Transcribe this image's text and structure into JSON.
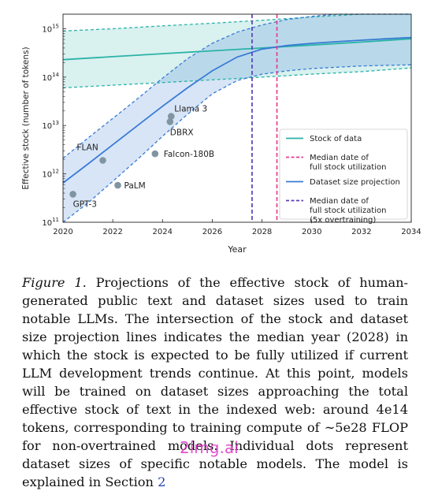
{
  "chart_data": {
    "type": "line",
    "xlabel": "Year",
    "ylabel": "Effective stock (number of tokens)",
    "xlim": [
      2020,
      2034
    ],
    "ylim": [
      100000000000.0,
      2000000000000000.0
    ],
    "yscale": "log",
    "grid": false,
    "legend_placement": "lower-right",
    "x_ticks": [
      "2020",
      "2022",
      "2024",
      "2026",
      "2028",
      "2030",
      "2032",
      "2034"
    ],
    "y_ticks": [
      {
        "value": 100000000000.0,
        "mantissa": "10",
        "exp": "11"
      },
      {
        "value": 1000000000000.0,
        "mantissa": "10",
        "exp": "12"
      },
      {
        "value": 10000000000000.0,
        "mantissa": "10",
        "exp": "13"
      },
      {
        "value": 100000000000000.0,
        "mantissa": "10",
        "exp": "14"
      },
      {
        "value": 1000000000000000.0,
        "mantissa": "10",
        "exp": "15"
      }
    ],
    "stock": {
      "color": "#2bb3a8",
      "x": [
        2020,
        2022,
        2024,
        2026,
        2028,
        2030,
        2032,
        2034
      ],
      "y": [
        230000000000000.0,
        265000000000000.0,
        305000000000000.0,
        350000000000000.0,
        400000000000000.0,
        460000000000000.0,
        530000000000000.0,
        620000000000000.0
      ],
      "lower": [
        60000000000000.0,
        68000000000000.0,
        77000000000000.0,
        88000000000000.0,
        100000000000000.0,
        115000000000000.0,
        130000000000000.0,
        155000000000000.0
      ],
      "upper": [
        900000000000000.0,
        1000000000000000.0,
        1150000000000000.0,
        1300000000000000.0,
        1500000000000000.0,
        1750000000000000.0,
        2000000000000000.0,
        2300000000000000.0
      ]
    },
    "projection": {
      "color": "#3a7bd5",
      "x": [
        2020,
        2021,
        2022,
        2023,
        2024,
        2025,
        2026,
        2027,
        2028,
        2029,
        2030,
        2031,
        2032,
        2033,
        2034
      ],
      "y": [
        650000000000.0,
        1600000000000.0,
        4000000000000.0,
        10000000000000.0,
        25000000000000.0,
        60000000000000.0,
        135000000000000.0,
        260000000000000.0,
        380000000000000.0,
        450000000000000.0,
        500000000000000.0,
        540000000000000.0,
        580000000000000.0,
        620000000000000.0,
        660000000000000.0
      ],
      "lower": [
        90000000000.0,
        250000000000.0,
        700000000000.0,
        2000000000000.0,
        6000000000000.0,
        17000000000000.0,
        45000000000000.0,
        85000000000000.0,
        115000000000000.0,
        135000000000000.0,
        150000000000000.0,
        160000000000000.0,
        170000000000000.0,
        175000000000000.0,
        180000000000000.0
      ],
      "upper": [
        2100000000000.0,
        5500000000000.0,
        14000000000000.0,
        36000000000000.0,
        95000000000000.0,
        240000000000000.0,
        500000000000000.0,
        850000000000000.0,
        1200000000000000.0,
        1550000000000000.0,
        1800000000000000.0,
        2050000000000000.0,
        2250000000000000.0,
        2450000000000000.0,
        2600000000000000.0
      ]
    },
    "median_full_utilization": {
      "year": 2028.6,
      "color": "#e83e8c"
    },
    "median_full_utilization_overtrained": {
      "year": 2027.6,
      "color": "#5a3fb5"
    },
    "models": [
      {
        "name": "GPT-3",
        "x": 2020.4,
        "y": 380000000000.0
      },
      {
        "name": "FLAN",
        "x": 2021.6,
        "y": 1900000000000.0
      },
      {
        "name": "PaLM",
        "x": 2022.2,
        "y": 580000000000.0
      },
      {
        "name": "Falcon-180B",
        "x": 2023.7,
        "y": 2600000000000.0
      },
      {
        "name": "DBRX",
        "x": 2024.3,
        "y": 12000000000000.0
      },
      {
        "name": "Llama 3",
        "x": 2024.35,
        "y": 15500000000000.0
      }
    ],
    "point_color": "#7f95a0",
    "legend": [
      {
        "label": "Stock of data",
        "style": "solid",
        "color": "#2bb3a8"
      },
      {
        "label": "Median date of full stock utilization",
        "lines": [
          "Median date of",
          "full stock utilization"
        ],
        "style": "dashed",
        "color": "#e83e8c"
      },
      {
        "label": "Dataset size projection",
        "style": "solid",
        "color": "#3a7bd5"
      },
      {
        "label": "Median date of full stock utilization (5x overtraining)",
        "lines": [
          "Median date of",
          "full stock utilization",
          "(5x overtraining)"
        ],
        "style": "dashed",
        "color": "#5a3fb5"
      }
    ]
  },
  "caption": {
    "label": "Figure 1.",
    "body": "Projections of the effective stock of human-generated public text and dataset sizes used to train notable LLMs. The intersection of the stock and dataset size projection lines indicates the median year (2028) in which the stock is expected to be fully utilized if current LLM development trends continue. At this point, models will be trained on dataset sizes approaching the total effective stock of text in the indexed web: around 4e14 tokens, corresponding to training compute of ∼5e28 FLOP for non-overtrained models. Individual dots represent dataset sizes of specific notable models. The model is explained in Section",
    "section_ref": "2"
  },
  "watermark": "2img.ai"
}
